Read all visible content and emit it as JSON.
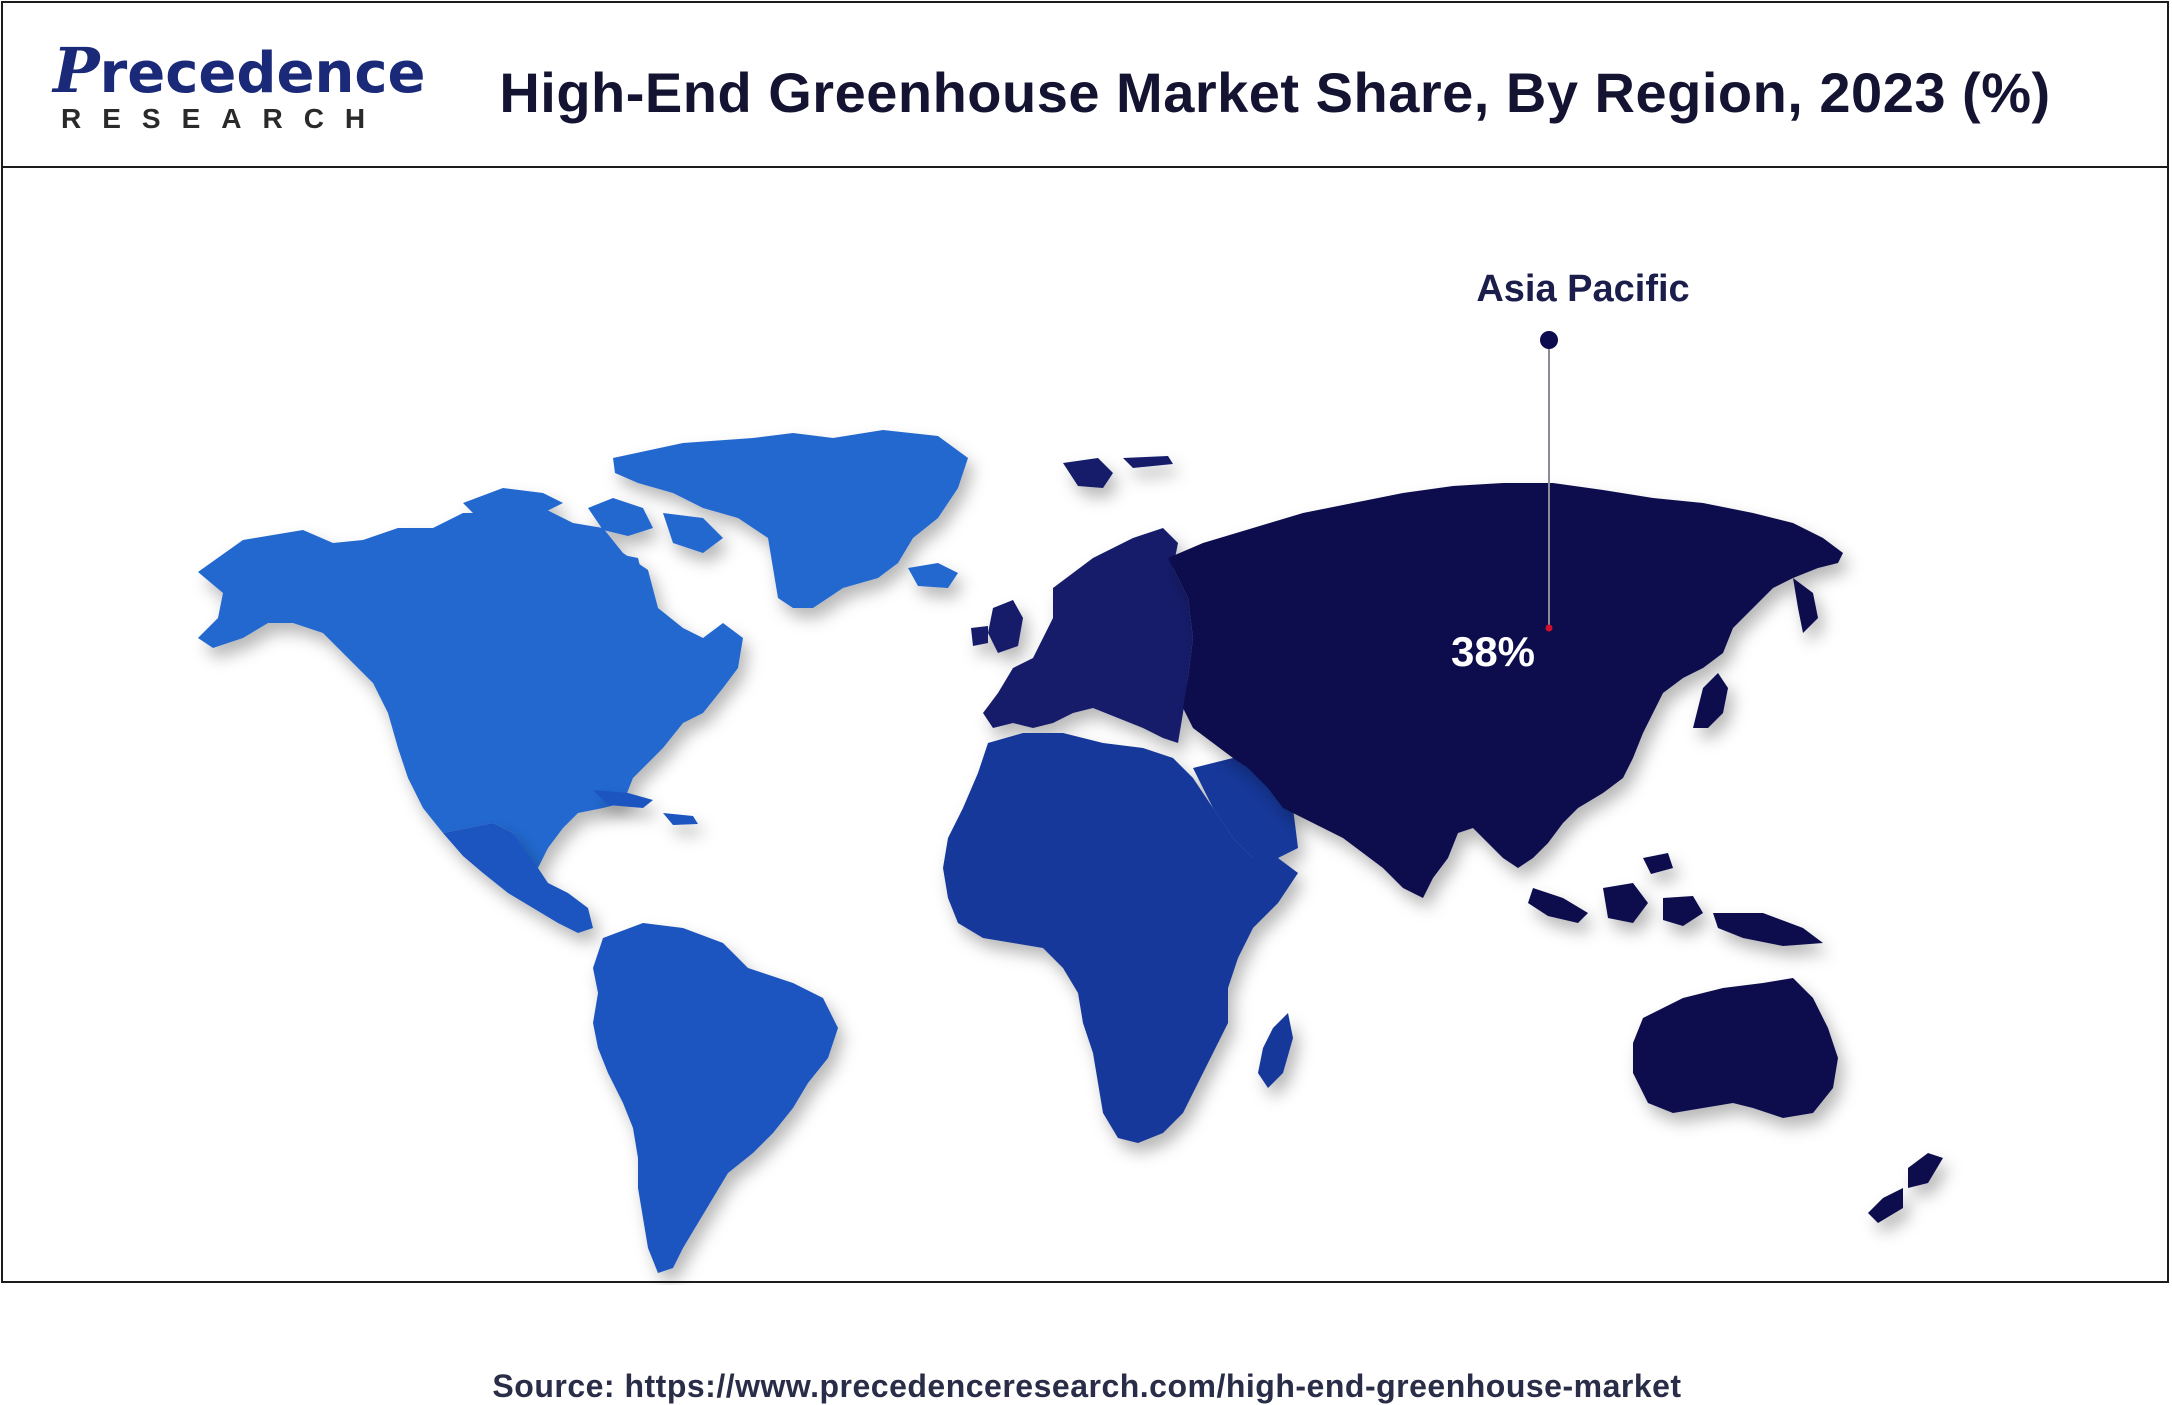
{
  "header": {
    "logo_word": "Precedence",
    "logo_sub": "RESEARCH",
    "title": "High-End Greenhouse Market Share, By Region, 2023 (%)"
  },
  "map": {
    "regions": [
      {
        "name": "Asia Pacific",
        "value": "38%",
        "color": "#0c0c4e",
        "labeled": true
      },
      {
        "name": "North America",
        "color": "#2467cf",
        "labeled": false
      },
      {
        "name": "Latin America",
        "color": "#1d55c0",
        "labeled": false
      },
      {
        "name": "Europe",
        "color": "#141f6a",
        "labeled": false
      },
      {
        "name": "Middle East and Africa",
        "color": "#13389a",
        "labeled": false
      }
    ],
    "callout": {
      "label": "Asia Pacific",
      "value": "38%"
    }
  },
  "footer": {
    "source": "Source: https://www.precedenceresearch.com/high-end-greenhouse-market"
  },
  "colors": {
    "title_text": "#141432",
    "logo_blue": "#1a2a78",
    "border": "#1c1c1c"
  }
}
